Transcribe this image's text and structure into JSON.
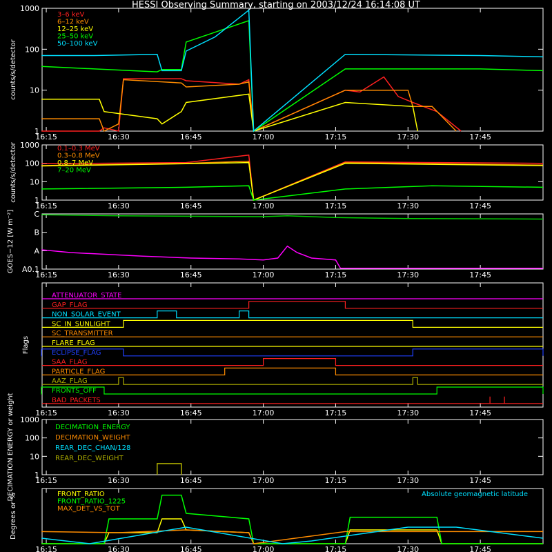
{
  "title": "HESSI Observing Summary, starting on 2003/12/24 16:14:08 UT",
  "x_tick_labels": [
    "16:15",
    "16:30",
    "16:45",
    "17:00",
    "17:15",
    "17:30",
    "17:45"
  ],
  "chart_data": [
    {
      "type": "line",
      "ylabel": "counts/s/detector",
      "yscale": "log",
      "ylim": [
        1,
        1000
      ],
      "y_tick_labels": [
        "1",
        "10",
        "100",
        "1000"
      ],
      "x_time_range": [
        "16:14:08",
        "17:58"
      ],
      "series": [
        {
          "name": "3–6 keV",
          "color": "#ff2020",
          "x": [
            "16:14",
            "16:26",
            "16:27",
            "16:30",
            "16:31",
            "16:43",
            "16:44",
            "16:55",
            "16:57",
            "16:58",
            "17:17",
            "17:20",
            "17:25",
            "17:28",
            "17:31",
            "17:36",
            "17:41"
          ],
          "y": [
            1,
            1,
            1.2,
            1,
            19,
            19,
            17,
            14,
            18,
            1,
            10,
            9,
            21,
            7,
            5,
            3,
            1
          ]
        },
        {
          "name": "6–12 keV",
          "color": "#ff8c00",
          "x": [
            "16:14",
            "16:26",
            "16:27",
            "16:30",
            "16:31",
            "16:43",
            "16:44",
            "16:55",
            "16:57",
            "16:58",
            "17:17",
            "17:22",
            "17:30",
            "17:31",
            "17:35",
            "17:40"
          ],
          "y": [
            2,
            2,
            1,
            1.5,
            18,
            15,
            12,
            14,
            16,
            1,
            10,
            10,
            10,
            4,
            4,
            1
          ]
        },
        {
          "name": "12–25 keV",
          "color": "#ffff00",
          "x": [
            "16:14",
            "16:26",
            "16:27",
            "16:38",
            "16:39",
            "16:43",
            "16:44",
            "16:57",
            "16:58",
            "17:17",
            "17:31",
            "17:32"
          ],
          "y": [
            6,
            6,
            3,
            2,
            1.5,
            3,
            5,
            8,
            1,
            5,
            4,
            1
          ]
        },
        {
          "name": "25–50 keV",
          "color": "#00ff00",
          "x": [
            "16:14",
            "16:25",
            "16:38",
            "16:39",
            "16:43",
            "16:44",
            "16:50",
            "16:57",
            "16:58",
            "17:17",
            "17:45",
            "17:58"
          ],
          "y": [
            38,
            33,
            28,
            32,
            32,
            150,
            260,
            500,
            1,
            33,
            33,
            30
          ]
        },
        {
          "name": "50–100 keV",
          "color": "#00e0ff",
          "x": [
            "16:14",
            "16:25",
            "16:38",
            "16:39",
            "16:43",
            "16:44",
            "16:50",
            "16:57",
            "16:58",
            "17:17",
            "17:45",
            "17:58"
          ],
          "y": [
            70,
            70,
            75,
            30,
            30,
            90,
            200,
            900,
            1,
            75,
            70,
            65
          ]
        }
      ]
    },
    {
      "type": "line",
      "ylabel": "counts/s/detector",
      "yscale": "log",
      "ylim": [
        1,
        1000
      ],
      "y_tick_labels": [
        "1",
        "10",
        "100",
        "1000"
      ],
      "series": [
        {
          "name": "0.1–0.3 MeV",
          "color": "#ff2020",
          "x": [
            "16:14",
            "16:44",
            "16:57",
            "16:58",
            "17:17",
            "17:35",
            "17:58"
          ],
          "y": [
            95,
            110,
            280,
            1,
            120,
            110,
            100
          ]
        },
        {
          "name": "0.3–0.8 MeV",
          "color": "#ff8c00",
          "x": [
            "16:14",
            "16:44",
            "16:57",
            "16:58",
            "17:17",
            "17:58"
          ],
          "y": [
            75,
            100,
            130,
            1,
            110,
            80
          ]
        },
        {
          "name": "0.8–7 MeV",
          "color": "#ffff00",
          "x": [
            "16:14",
            "16:44",
            "16:57",
            "16:58",
            "17:17",
            "17:58"
          ],
          "y": [
            72,
            95,
            110,
            1,
            100,
            75
          ]
        },
        {
          "name": "7–20 MeV",
          "color": "#00ff00",
          "x": [
            "16:14",
            "16:44",
            "16:57",
            "16:58",
            "17:17",
            "17:35",
            "17:58"
          ],
          "y": [
            4,
            5,
            6,
            1,
            4,
            6,
            5
          ]
        }
      ]
    },
    {
      "type": "line",
      "ylabel": "GOES−12 [W m⁻²]",
      "y_tick_labels": [
        "A0.1",
        "A",
        "B",
        "C"
      ],
      "ylim_level": [
        0,
        3
      ],
      "series": [
        {
          "color": "#00d000",
          "x": [
            "16:14",
            "16:30",
            "17:00",
            "17:05",
            "17:15",
            "17:30",
            "17:58"
          ],
          "y": [
            2.95,
            2.9,
            2.85,
            2.9,
            2.8,
            2.75,
            2.72
          ]
        },
        {
          "color": "#ff00ff",
          "x": [
            "16:14",
            "16:20",
            "16:35",
            "16:45",
            "16:55",
            "17:00",
            "17:03",
            "17:05",
            "17:07",
            "17:10",
            "17:15",
            "17:16",
            "17:30",
            "17:58"
          ],
          "y": [
            1.05,
            0.9,
            0.7,
            0.6,
            0.55,
            0.5,
            0.6,
            1.25,
            0.9,
            0.6,
            0.5,
            0.05,
            0.05,
            0.05
          ]
        }
      ]
    },
    {
      "type": "line",
      "ylabel": "Flags",
      "flags": [
        {
          "name": "ATTENUATOR_STATE",
          "color": "#ff00ff",
          "high": []
        },
        {
          "name": "GAP_FLAG",
          "color": "#ff2020",
          "high": [
            [
              "16:57",
              "17:17"
            ]
          ]
        },
        {
          "name": "NON_SOLAR_EVENT",
          "color": "#00e0ff",
          "high": [
            [
              "16:38",
              "16:42"
            ],
            [
              "16:55",
              "16:57"
            ]
          ]
        },
        {
          "name": "SC_IN_SUNLIGHT",
          "color": "#ffff00",
          "high": [
            [
              "16:31",
              "17:31"
            ]
          ]
        },
        {
          "name": "SC_TRANSMITTER",
          "color": "#ff8c00",
          "high": []
        },
        {
          "name": "FLARE_FLAG",
          "color": "#ffff00",
          "high": []
        },
        {
          "name": "ECLIPSE_FLAG",
          "color": "#2040ff",
          "high": [
            [
              "16:14",
              "16:31"
            ],
            [
              "17:31",
              "17:58"
            ]
          ]
        },
        {
          "name": "SAA_FLAG",
          "color": "#ff2020",
          "high": [
            [
              "17:00",
              "17:15"
            ]
          ]
        },
        {
          "name": "PARTICLE_FLAG",
          "color": "#ff8c00",
          "high": [
            [
              "16:52",
              "17:15"
            ]
          ]
        },
        {
          "name": "AAZ_FLAG",
          "color": "#b0b000",
          "high": [
            [
              "16:30",
              "16:31"
            ],
            [
              "17:31",
              "17:32"
            ]
          ]
        },
        {
          "name": "FRONTS_OFF",
          "color": "#00ff00",
          "high": [
            [
              "16:14",
              "16:27"
            ],
            [
              "17:36",
              "17:58"
            ]
          ]
        },
        {
          "name": "BAD_PACKETS",
          "color": "#ff2020",
          "high": [
            [
              "17:47",
              "17:47"
            ],
            [
              "17:50",
              "17:50"
            ]
          ]
        }
      ]
    },
    {
      "type": "line",
      "ylabel": "DECIMATION ENERGY or weight",
      "yscale": "log",
      "ylim": [
        1,
        1000
      ],
      "y_tick_labels": [
        "1",
        "10",
        "100",
        "1000"
      ],
      "series": [
        {
          "name": "DECIMATION_ENERGY",
          "color": "#00ff00",
          "x": [],
          "y": []
        },
        {
          "name": "DECIMATION_WEIGHT",
          "color": "#ff8c00",
          "x": [],
          "y": []
        },
        {
          "name": "REAR_DEC_CHAN/128",
          "color": "#00e0ff",
          "x": [],
          "y": []
        },
        {
          "name": "REAR_DEC_WEIGHT",
          "color": "#b0b000",
          "x": [
            "16:38",
            "16:38",
            "16:43",
            "16:43"
          ],
          "y": [
            1,
            4,
            4,
            1
          ]
        }
      ]
    },
    {
      "type": "line",
      "ylabel": "Degrees or %",
      "ylim": [
        0,
        100
      ],
      "annotation": "Absolute geomagnetic latitude",
      "series": [
        {
          "name": "FRONT_RATIO",
          "color": "#ffff00",
          "x": [
            "16:14",
            "16:27",
            "16:28",
            "16:38",
            "16:39",
            "16:43",
            "16:44",
            "16:57",
            "16:58",
            "17:17",
            "17:18",
            "17:36",
            "17:37",
            "17:58"
          ],
          "y": [
            0,
            0,
            20,
            20,
            45,
            45,
            25,
            20,
            0,
            0,
            25,
            25,
            0,
            0
          ]
        },
        {
          "name": "FRONT_RATIO_1225",
          "color": "#00ff00",
          "x": [
            "16:14",
            "16:27",
            "16:28",
            "16:38",
            "16:39",
            "16:43",
            "16:44",
            "16:57",
            "16:58",
            "17:17",
            "17:18",
            "17:36",
            "17:37",
            "17:58"
          ],
          "y": [
            0,
            0,
            45,
            45,
            88,
            88,
            55,
            45,
            0,
            0,
            48,
            48,
            0,
            0
          ]
        },
        {
          "name": "MAX_DET_VS_TOT",
          "color": "#ff8c00",
          "x": [
            "16:14",
            "16:30",
            "16:44",
            "16:57",
            "16:58",
            "17:17",
            "17:35",
            "17:58"
          ],
          "y": [
            22,
            20,
            25,
            20,
            0,
            22,
            22,
            22
          ]
        },
        {
          "name": "Absolute geomagnetic latitude",
          "color": "#00e0ff",
          "x": [
            "16:14",
            "16:24",
            "16:44",
            "17:04",
            "17:10",
            "17:30",
            "17:40",
            "17:58"
          ],
          "y": [
            10,
            0,
            30,
            0,
            5,
            30,
            30,
            10
          ]
        }
      ]
    }
  ]
}
